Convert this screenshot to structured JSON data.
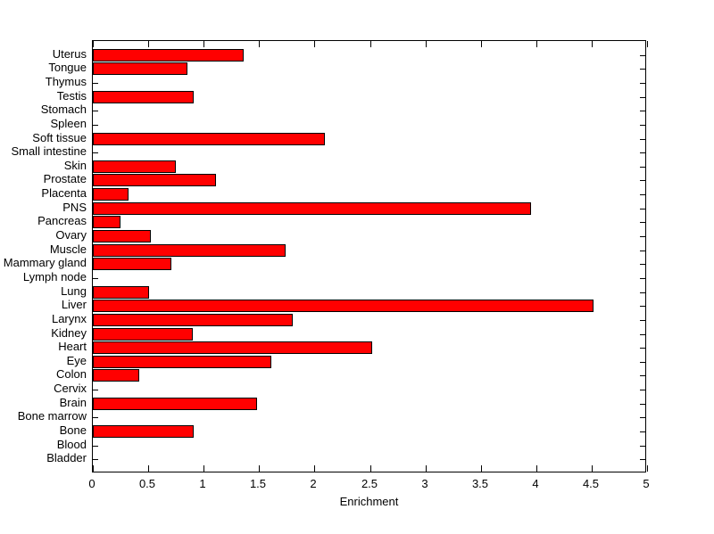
{
  "chart_data": {
    "type": "bar",
    "orientation": "horizontal",
    "title": "",
    "xlabel": "Enrichment",
    "ylabel": "",
    "xlim": [
      0,
      5
    ],
    "xticks": [
      0,
      0.5,
      1,
      1.5,
      2,
      2.5,
      3,
      3.5,
      4,
      4.5,
      5
    ],
    "xtick_labels": [
      "0",
      "0.5",
      "1",
      "1.5",
      "2",
      "2.5",
      "3",
      "3.5",
      "4",
      "4.5",
      "5"
    ],
    "grid": false,
    "legend": null,
    "bar_color": "#ff0000",
    "bar_edge_color": "#000000",
    "axis_color": "#000000",
    "background_color": "#ffffff",
    "category_order": "top-to-bottom",
    "categories": [
      "Uterus",
      "Tongue",
      "Thymus",
      "Testis",
      "Stomach",
      "Spleen",
      "Soft tissue",
      "Small intestine",
      "Skin",
      "Prostate",
      "Placenta",
      "PNS",
      "Pancreas",
      "Ovary",
      "Muscle",
      "Mammary gland",
      "Lymph node",
      "Lung",
      "Liver",
      "Larynx",
      "Kidney",
      "Heart",
      "Eye",
      "Colon",
      "Cervix",
      "Brain",
      "Bone marrow",
      "Bone",
      "Blood",
      "Bladder"
    ],
    "values": [
      1.36,
      0.85,
      0,
      0.91,
      0,
      0,
      2.09,
      0,
      0.75,
      1.11,
      0.32,
      3.95,
      0.25,
      0.52,
      1.74,
      0.71,
      0,
      0.51,
      4.52,
      1.8,
      0.9,
      2.52,
      1.61,
      0.42,
      0,
      1.48,
      0,
      0.91,
      0,
      0
    ]
  }
}
